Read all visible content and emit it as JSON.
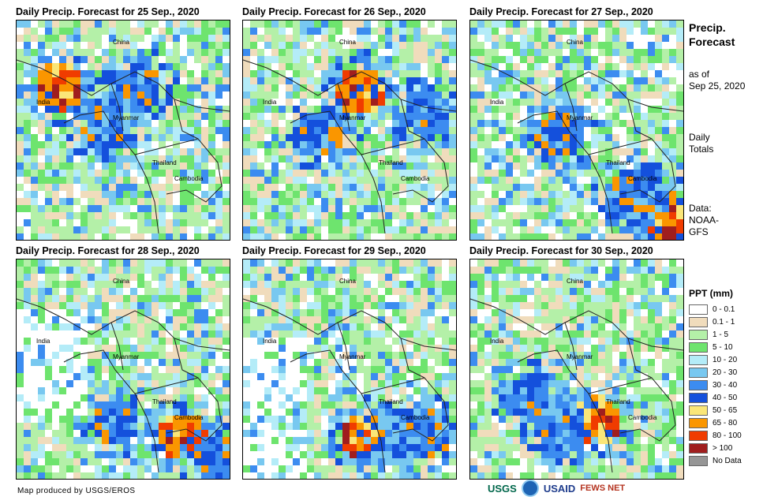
{
  "panels": [
    {
      "title": "Daily Precip. Forecast for 25 Sep., 2020",
      "labels": [
        "China",
        "India",
        "Myanmar",
        "Thailand",
        "Cambodia"
      ]
    },
    {
      "title": "Daily Precip. Forecast for 26 Sep., 2020",
      "labels": [
        "China",
        "India",
        "Myanmar",
        "Thailand",
        "Cambodia"
      ]
    },
    {
      "title": "Daily Precip. Forecast for 27 Sep., 2020",
      "labels": [
        "China",
        "India",
        "Myanmar",
        "Thailand",
        "Cambodia"
      ]
    },
    {
      "title": "Daily Precip. Forecast for 28 Sep., 2020",
      "labels": [
        "China",
        "India",
        "Myanmar",
        "Thailand",
        "Cambodia"
      ]
    },
    {
      "title": "Daily Precip. Forecast for 29 Sep., 2020",
      "labels": [
        "China",
        "India",
        "Myanmar",
        "Thailand",
        "Cambodia"
      ]
    },
    {
      "title": "Daily Precip. Forecast for 30 Sep., 2020",
      "labels": [
        "China",
        "India",
        "Myanmar",
        "Thailand",
        "Cambodia"
      ]
    }
  ],
  "sidebar": {
    "title_line1": "Precip.",
    "title_line2": "Forecast",
    "asof_line1": "as of",
    "asof_line2": "Sep 25, 2020",
    "daily_line1": "Daily",
    "daily_line2": "Totals",
    "data_line1": "Data:",
    "data_line2": "NOAA-",
    "data_line3": "GFS"
  },
  "legend": {
    "title": "PPT (mm)",
    "items": [
      {
        "label": "0 - 0.1",
        "color": "#ffffff"
      },
      {
        "label": "0.1 - 1",
        "color": "#f0dcbc"
      },
      {
        "label": "1 - 5",
        "color": "#b4f0a8"
      },
      {
        "label": "5 - 10",
        "color": "#6ee46e"
      },
      {
        "label": "10 - 20",
        "color": "#b4ecf8"
      },
      {
        "label": "20 - 30",
        "color": "#78c8f0"
      },
      {
        "label": "30 - 40",
        "color": "#3c8cf0"
      },
      {
        "label": "40 - 50",
        "color": "#1450dc"
      },
      {
        "label": "50 - 65",
        "color": "#fae678"
      },
      {
        "label": "65 - 80",
        "color": "#fa9600"
      },
      {
        "label": "80 - 100",
        "color": "#f03c00"
      },
      {
        "label": "> 100",
        "color": "#a01e1e"
      },
      {
        "label": "No Data",
        "color": "#969696"
      }
    ]
  },
  "footer": {
    "credit": "Map produced by USGS/EROS",
    "logos": [
      "USGS",
      "NOAA",
      "USAID",
      "FEWS NET"
    ]
  }
}
